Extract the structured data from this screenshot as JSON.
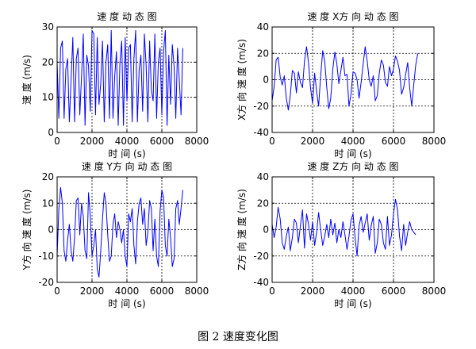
{
  "figure": {
    "caption": "图 2  速度变化图"
  },
  "colors": {
    "series": "#0000ff",
    "axis": "#000000",
    "grid": "#000000"
  },
  "chart_data": [
    {
      "type": "line",
      "title": "速 度 动 态 图",
      "xlabel": "时 间 (s)",
      "ylabel": "速 度 (m/s)",
      "xlim": [
        0,
        8000
      ],
      "ylim": [
        0,
        30
      ],
      "xticks": [
        0,
        2000,
        4000,
        6000,
        8000
      ],
      "yticks": [
        0,
        10,
        20,
        30
      ],
      "grid": true,
      "series": [
        {
          "x": [
            0,
            100,
            200,
            300,
            400,
            500,
            600,
            700,
            800,
            900,
            1000,
            1100,
            1200,
            1300,
            1400,
            1500,
            1600,
            1700,
            1800,
            1900,
            2000,
            2100,
            2200,
            2300,
            2400,
            2500,
            2600,
            2700,
            2800,
            2900,
            3000,
            3100,
            3200,
            3300,
            3400,
            3500,
            3600,
            3700,
            3800,
            3900,
            4000,
            4100,
            4200,
            4300,
            4400,
            4500,
            4600,
            4700,
            4800,
            4900,
            5000,
            5100,
            5200,
            5300,
            5400,
            5500,
            5600,
            5700,
            5800,
            5900,
            6000,
            6100,
            6200,
            6300,
            6400,
            6500,
            6600,
            6700,
            6800,
            6900,
            7000,
            7100,
            7200
          ],
          "y": [
            20,
            4,
            24,
            26,
            4,
            18,
            21,
            3,
            15,
            27,
            3,
            21,
            24,
            5,
            16,
            28,
            2,
            22,
            19,
            6,
            29,
            28,
            5,
            27,
            8,
            14,
            26,
            3,
            20,
            25,
            4,
            29,
            4,
            16,
            23,
            2,
            20,
            26,
            2,
            27,
            9,
            24,
            25,
            3,
            21,
            29,
            3,
            18,
            22,
            6,
            28,
            19,
            3,
            26,
            12,
            9,
            28,
            4,
            20,
            24,
            5,
            23,
            29,
            2,
            22,
            8,
            25,
            19,
            4,
            24,
            15,
            5,
            24
          ]
        }
      ]
    },
    {
      "type": "line",
      "title": "速 度 X方 向 动 态 图",
      "xlabel": "时 间 (s)",
      "ylabel": "X方 向 速 度 (m/s)",
      "xlim": [
        0,
        8000
      ],
      "ylim": [
        -40,
        40
      ],
      "xticks": [
        0,
        2000,
        4000,
        6000,
        8000
      ],
      "yticks": [
        -40,
        -20,
        0,
        20,
        40
      ],
      "grid": true,
      "series": [
        {
          "x": [
            0,
            100,
            200,
            300,
            400,
            500,
            600,
            700,
            800,
            900,
            1000,
            1100,
            1200,
            1300,
            1400,
            1500,
            1600,
            1700,
            1800,
            1900,
            2000,
            2100,
            2200,
            2300,
            2400,
            2500,
            2600,
            2700,
            2800,
            2900,
            3000,
            3100,
            3200,
            3300,
            3400,
            3500,
            3600,
            3700,
            3800,
            3900,
            4000,
            4100,
            4200,
            4300,
            4400,
            4500,
            4600,
            4700,
            4800,
            4900,
            5000,
            5100,
            5200,
            5300,
            5400,
            5500,
            5600,
            5700,
            5800,
            5900,
            6000,
            6100,
            6200,
            6300,
            6400,
            6500,
            6600,
            6700,
            6800,
            6900,
            7000,
            7100,
            7200
          ],
          "y": [
            -16,
            -5,
            15,
            17,
            2,
            -4,
            3,
            -14,
            -23,
            -12,
            7,
            5,
            -10,
            6,
            -2,
            -6,
            14,
            25,
            13,
            -6,
            -18,
            5,
            -9,
            -20,
            3,
            22,
            14,
            -6,
            -22,
            -14,
            8,
            21,
            12,
            -3,
            7,
            17,
            3,
            4,
            -20,
            -11,
            6,
            5,
            0,
            -14,
            -2,
            12,
            25,
            14,
            0,
            -5,
            3,
            -16,
            -12,
            5,
            15,
            11,
            -2,
            -5,
            10,
            3,
            8,
            18,
            14,
            7,
            -11,
            -6,
            4,
            13,
            -6,
            -20,
            -4,
            11,
            20
          ]
        }
      ]
    },
    {
      "type": "line",
      "title": "速 度 Y方 向 动 态 图",
      "xlabel": "时 间 (s)",
      "ylabel": "Y方 向 速 度 (m/s)",
      "xlim": [
        0,
        8000
      ],
      "ylim": [
        -20,
        20
      ],
      "xticks": [
        0,
        2000,
        4000,
        6000,
        8000
      ],
      "yticks": [
        -20,
        -10,
        0,
        10,
        20
      ],
      "grid": true,
      "series": [
        {
          "x": [
            0,
            100,
            200,
            300,
            400,
            500,
            600,
            700,
            800,
            900,
            1000,
            1100,
            1200,
            1300,
            1400,
            1500,
            1600,
            1700,
            1800,
            1900,
            2000,
            2100,
            2200,
            2300,
            2400,
            2500,
            2600,
            2700,
            2800,
            2900,
            3000,
            3100,
            3200,
            3300,
            3400,
            3500,
            3600,
            3700,
            3800,
            3900,
            4000,
            4100,
            4200,
            4300,
            4400,
            4500,
            4600,
            4700,
            4800,
            4900,
            5000,
            5100,
            5200,
            5300,
            5400,
            5500,
            5600,
            5700,
            5800,
            5900,
            6000,
            6100,
            6200,
            6300,
            6400,
            6500,
            6600,
            6700,
            6800,
            6900,
            7000,
            7100,
            7200
          ],
          "y": [
            -10,
            8,
            16,
            10,
            -8,
            -12,
            -4,
            2,
            -8,
            -12,
            -3,
            11,
            12,
            -2,
            10,
            5,
            -8,
            -11,
            14,
            5,
            -10,
            -6,
            0,
            -15,
            -18,
            -8,
            4,
            14,
            10,
            -2,
            -12,
            -10,
            2,
            6,
            -3,
            3,
            0,
            -5,
            0,
            -10,
            -14,
            6,
            3,
            8,
            -6,
            -13,
            3,
            10,
            12,
            2,
            8,
            -6,
            -1,
            11,
            8,
            -8,
            4,
            -10,
            -14,
            7,
            15,
            12,
            -6,
            -10,
            4,
            -3,
            -14,
            -11,
            8,
            11,
            2,
            8,
            15
          ]
        }
      ]
    },
    {
      "type": "line",
      "title": "速 度 Z方 向 动 态 图",
      "xlabel": "时 间 (s)",
      "ylabel": "Z方 向 速 度 (m/s)",
      "xlim": [
        0,
        8000
      ],
      "ylim": [
        -40,
        40
      ],
      "xticks": [
        0,
        2000,
        4000,
        6000,
        8000
      ],
      "yticks": [
        -40,
        -20,
        0,
        20,
        40
      ],
      "grid": true,
      "series": [
        {
          "x": [
            0,
            100,
            200,
            300,
            400,
            500,
            600,
            700,
            800,
            900,
            1000,
            1100,
            1200,
            1300,
            1400,
            1500,
            1600,
            1700,
            1800,
            1900,
            2000,
            2100,
            2200,
            2300,
            2400,
            2500,
            2600,
            2700,
            2800,
            2900,
            3000,
            3100,
            3200,
            3300,
            3400,
            3500,
            3600,
            3700,
            3800,
            3900,
            4000,
            4100,
            4200,
            4300,
            4400,
            4500,
            4600,
            4700,
            4800,
            4900,
            5000,
            5100,
            5200,
            5300,
            5400,
            5500,
            5600,
            5700,
            5800,
            5900,
            6000,
            6100,
            6200,
            6300,
            6400,
            6500,
            6600,
            6700,
            6800,
            6900,
            7000,
            7100
          ],
          "y": [
            4,
            -6,
            2,
            17,
            8,
            -10,
            -15,
            -5,
            2,
            -16,
            -6,
            8,
            5,
            -10,
            3,
            15,
            -14,
            12,
            4,
            -8,
            6,
            -12,
            -2,
            13,
            0,
            -12,
            -5,
            4,
            -6,
            8,
            -4,
            5,
            -10,
            0,
            -6,
            6,
            -4,
            -15,
            -5,
            7,
            12,
            -6,
            -20,
            3,
            10,
            -2,
            5,
            12,
            -8,
            3,
            10,
            -18,
            -10,
            8,
            4,
            -10,
            -15,
            10,
            -12,
            -4,
            12,
            23,
            15,
            -5,
            -16,
            4,
            -12,
            -2,
            6,
            0,
            -2,
            -4
          ]
        }
      ]
    }
  ]
}
